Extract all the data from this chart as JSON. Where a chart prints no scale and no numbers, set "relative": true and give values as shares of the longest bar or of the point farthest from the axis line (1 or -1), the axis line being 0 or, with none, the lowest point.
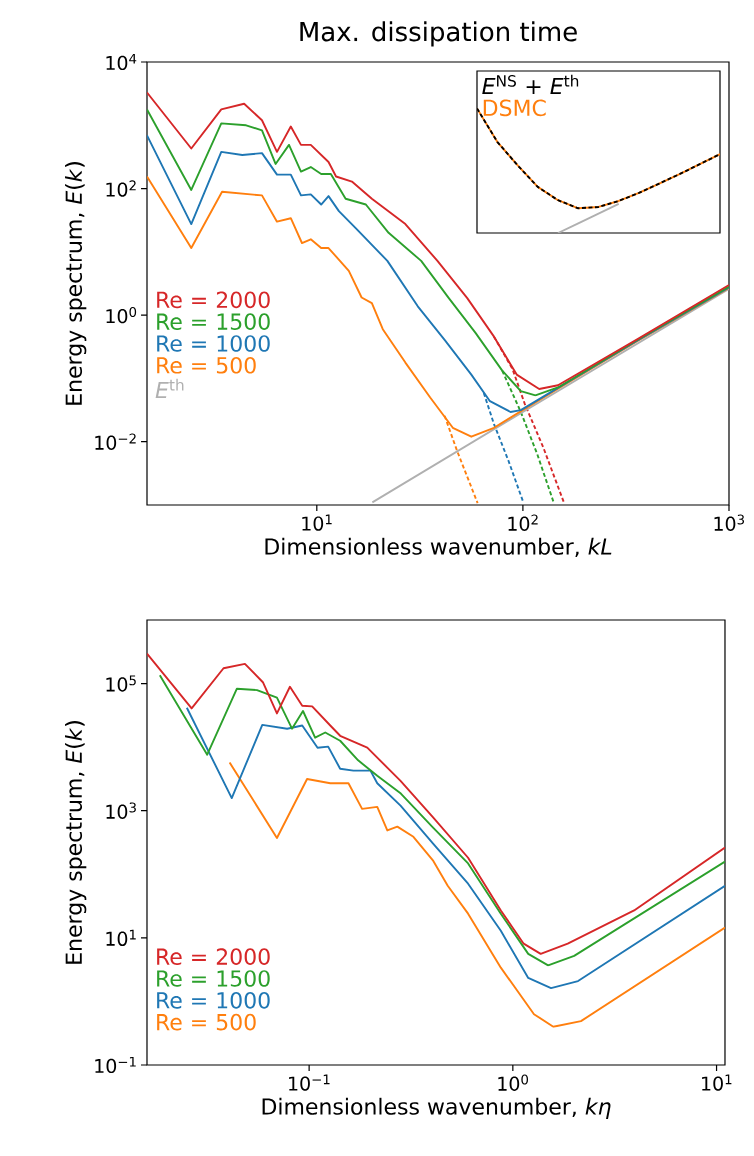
{
  "chart_data": [
    {
      "type": "line",
      "title": "Max. dissipation time",
      "xlabel": "Dimensionless wavenumber, *kL*",
      "ylabel": "Energy spectrum, *E*(*k*)",
      "log": "xy",
      "xlim": [
        1.5,
        1000
      ],
      "ylim": [
        0.001,
        10000
      ],
      "xticks": [
        {
          "value": 10,
          "label": "10$^{1}$"
        },
        {
          "value": 100,
          "label": "10$^{2}$"
        },
        {
          "value": 1000,
          "label": "10$^{3}$"
        }
      ],
      "yticks": [
        {
          "value": 0.01,
          "label": "10$^{−2}$"
        },
        {
          "value": 1,
          "label": "10$^{0}$"
        },
        {
          "value": 100,
          "label": "10$^{2}$"
        },
        {
          "value": 10000,
          "label": "10$^{4}$"
        }
      ],
      "legend": "left",
      "series": [
        {
          "name": "Re = 2000",
          "color": "#d62728",
          "x": [
            1.5,
            2.46,
            3.44,
            4.44,
            5.42,
            6.41,
            7.48,
            8.38,
            9.35,
            11.4,
            12.4,
            14.8,
            18.5,
            26.9,
            38.5,
            53.7,
            72.4,
            93.3,
            120,
            148,
            355,
            1000
          ],
          "values": [
            3300,
            430,
            1780,
            2190,
            1200,
            380,
            955,
            490,
            490,
            263,
            155,
            129,
            69,
            27.5,
            7.2,
            1.86,
            0.457,
            0.115,
            0.068,
            0.078,
            0.407,
            3.0
          ]
        },
        {
          "name": "Re = 1500",
          "color": "#2ca02c",
          "x": [
            1.5,
            2.46,
            3.44,
            4.54,
            5.42,
            6.31,
            7.33,
            8.38,
            9.35,
            10.5,
            11.7,
            13.8,
            17.3,
            22.3,
            32.1,
            43.7,
            58.9,
            79.4,
            97.7,
            115,
            148,
            355,
            1000
          ],
          "values": [
            1780,
            95,
            1070,
            1000,
            832,
            245,
            490,
            186,
            219,
            170,
            170,
            69,
            56,
            20,
            7.2,
            1.86,
            0.525,
            0.133,
            0.063,
            0.054,
            0.072,
            0.398,
            2.82
          ]
        },
        {
          "name": "Re = 1000",
          "color": "#1f77b4",
          "x": [
            1.5,
            2.46,
            3.44,
            4.35,
            5.42,
            6.41,
            7.48,
            8.38,
            9.35,
            10.5,
            11.4,
            12.8,
            15.4,
            22,
            30.9,
            41.7,
            56.2,
            69.2,
            87.1,
            97.7,
            148,
            355,
            1000
          ],
          "values": [
            692,
            27.5,
            380,
            339,
            363,
            166,
            166,
            78,
            81,
            56,
            76,
            44,
            24,
            7.2,
            1.38,
            0.407,
            0.115,
            0.0437,
            0.0295,
            0.0316,
            0.0708,
            0.389,
            2.75
          ]
        },
        {
          "name": "Re = 500",
          "color": "#ff7f0e",
          "x": [
            1.5,
            2.46,
            3.47,
            5.42,
            6.41,
            7.48,
            8.47,
            9.35,
            10.5,
            11.4,
            14.3,
            16.5,
            18.5,
            20.9,
            26.9,
            35.5,
            45.7,
            56.2,
            72.4,
            148,
            355,
            1000
          ],
          "values": [
            155,
            11.5,
            89,
            78,
            30,
            34,
            13.8,
            15.8,
            11.5,
            11.5,
            5.0,
            1.9,
            1.55,
            0.6,
            0.178,
            0.05,
            0.0166,
            0.012,
            0.0166,
            0.069,
            0.38,
            2.69
          ]
        },
        {
          "name": "*E*$^{th}$",
          "color": "#b0b0b0",
          "x": [
            18.6,
            100,
            1000
          ],
          "values": [
            0.0011,
            0.0295,
            2.6
          ]
        },
        {
          "color": "#d62728",
          "line_style": "dashed",
          "x": [
            72.4,
            89,
            102,
            126,
            158
          ],
          "values": [
            0.457,
            0.141,
            0.04,
            0.0079,
            0.0011
          ]
        },
        {
          "color": "#2ca02c",
          "line_style": "dashed",
          "x": [
            79.4,
            97.7,
            117.5,
            141
          ],
          "values": [
            0.133,
            0.0295,
            0.0063,
            0.0011
          ]
        },
        {
          "color": "#1f77b4",
          "line_style": "dashed",
          "x": [
            64.6,
            72.4,
            85.1,
            100
          ],
          "values": [
            0.0589,
            0.019,
            0.005,
            0.00115
          ]
        },
        {
          "color": "#ff7f0e",
          "line_style": "dashed",
          "x": [
            41.7,
            47.9,
            60.3
          ],
          "values": [
            0.0257,
            0.0072,
            0.00107
          ]
        }
      ]
    },
    {
      "type": "line",
      "relative": true,
      "legend": "top left",
      "categories": [
        null,
        null,
        null,
        null,
        null,
        null,
        null,
        null,
        null,
        null,
        null,
        null,
        null
      ],
      "series": [
        {
          "name": "*E*$^{NS}$ + *E*$^{th}$",
          "color": "#000000",
          "line_style": "dashed",
          "values": [
            1.0,
            0.732,
            0.544,
            0.37,
            0.263,
            0.198,
            0.209,
            0.257,
            0.322,
            0.397,
            0.472,
            0.552,
            0.633
          ]
        },
        {
          "name": "DSMC",
          "color": "#ff7f0e",
          "values": [
            1.0,
            0.732,
            0.544,
            0.37,
            0.263,
            0.198,
            0.209,
            0.257,
            0.322,
            0.397,
            0.472,
            0.552,
            0.633
          ]
        },
        {
          "color": "#b0b0b0",
          "values": [
            null,
            null,
            null,
            null,
            0,
            0.078,
            0.155,
            0.233,
            null,
            null,
            null,
            null,
            null
          ]
        }
      ]
    },
    {
      "type": "line",
      "xlabel": "Dimensionless wavenumber, *kη*",
      "ylabel": "Energy spectrum, *E*(*k*)",
      "log": "xy",
      "xlim": [
        0.016,
        11
      ],
      "ylim": [
        0.1,
        1000000
      ],
      "xticks": [
        {
          "value": 0.1,
          "label": "10$^{−1}$"
        },
        {
          "value": 1,
          "label": "10$^{0}$"
        },
        {
          "value": 10,
          "label": "10$^{1}$"
        }
      ],
      "yticks": [
        {
          "value": 0.1,
          "label": "10$^{−1}$"
        },
        {
          "value": 10,
          "label": "10$^{1}$"
        },
        {
          "value": 1000,
          "label": "10$^{3}$"
        },
        {
          "value": 100000,
          "label": "10$^{5}$"
        }
      ],
      "legend": "bottom left",
      "series": [
        {
          "name": "Re = 2000",
          "color": "#d62728",
          "x": [
            0.016,
            0.0265,
            0.038,
            0.0484,
            0.0593,
            0.0695,
            0.0805,
            0.0925,
            0.1035,
            0.127,
            0.142,
            0.193,
            0.281,
            0.407,
            0.603,
            0.873,
            1.13,
            1.37,
            1.86,
            3.94,
            11
          ],
          "values": [
            295000,
            40700,
            174000,
            204000,
            105000,
            33900,
            89000,
            44700,
            43700,
            21900,
            15100,
            9800,
            2950,
            776,
            182,
            27,
            8.1,
            5.6,
            8.1,
            27,
            263
          ]
        },
        {
          "name": "Re = 1500",
          "color": "#2ca02c",
          "x": [
            0.0185,
            0.0316,
            0.0442,
            0.0555,
            0.0695,
            0.0824,
            0.0933,
            0.107,
            0.12,
            0.142,
            0.174,
            0.216,
            0.282,
            0.407,
            0.603,
            0.873,
            1.19,
            1.49,
            2.0,
            11
          ],
          "values": [
            135000,
            7600,
            83000,
            79000,
            60000,
            19500,
            37000,
            14100,
            17000,
            12600,
            6200,
            3550,
            1860,
            537,
            148,
            24,
            5.6,
            3.7,
            5.2,
            158
          ]
        },
        {
          "name": "Re = 1000",
          "color": "#1f77b4",
          "x": [
            0.0251,
            0.0417,
            0.0589,
            0.078,
            0.0925,
            0.11,
            0.124,
            0.142,
            0.165,
            0.2,
            0.216,
            0.281,
            0.407,
            0.603,
            0.873,
            1.19,
            1.54,
            2.09,
            11
          ],
          "values": [
            41700,
            1580,
            22400,
            19500,
            21900,
            9800,
            10200,
            4570,
            4270,
            4270,
            2700,
            1200,
            302,
            71,
            12.9,
            2.34,
            1.62,
            2.09,
            66
          ]
        },
        {
          "name": "Re = 500",
          "color": "#ff7f0e",
          "x": [
            0.0407,
            0.0695,
            0.0977,
            0.127,
            0.156,
            0.182,
            0.216,
            0.242,
            0.271,
            0.325,
            0.407,
            0.479,
            0.603,
            0.873,
            1.27,
            1.58,
            2.16,
            11
          ],
          "values": [
            5750,
            372,
            3160,
            2700,
            2700,
            1070,
            1150,
            490,
            562,
            389,
            162,
            66,
            24,
            3.4,
            0.63,
            0.4,
            0.49,
            14.5
          ]
        }
      ]
    }
  ]
}
